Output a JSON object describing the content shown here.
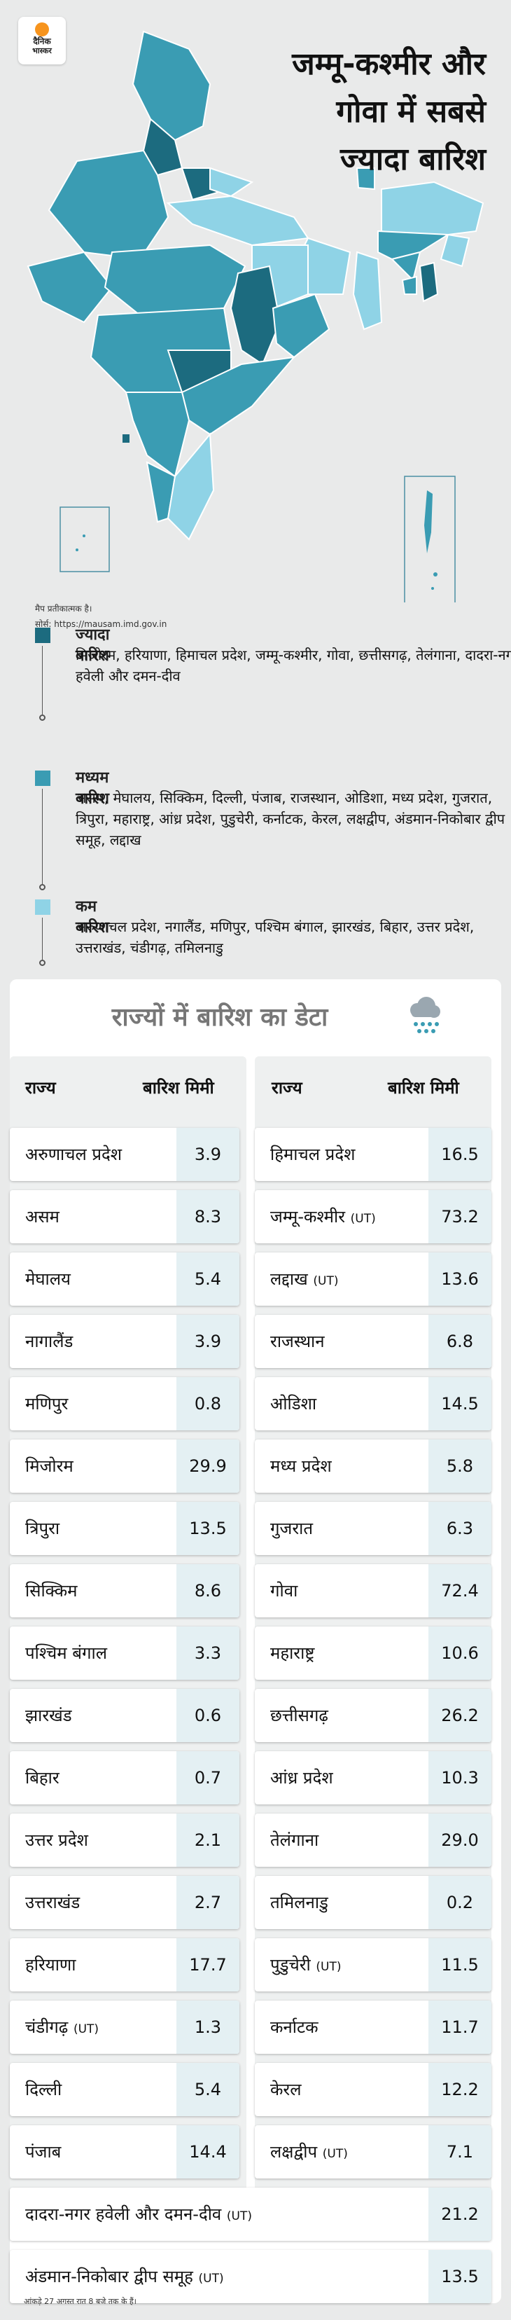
{
  "brand": {
    "line1": "दैनिक",
    "line2": "भास्कर"
  },
  "headline": [
    "जम्मू-कश्मीर और",
    "गोवा में सबसे",
    "ज्यादा बारिश"
  ],
  "map": {
    "note": "मैप प्रतीकात्मक है।",
    "source": "सोर्स: https://mausam.imd.gov.in",
    "colors": {
      "high": "#1c6b7f",
      "medium": "#3a9cb3",
      "low": "#8fd3e6"
    }
  },
  "legend": [
    {
      "title": "ज्यादा बारिश",
      "text": "मिजोरम, हरियाणा, हिमाचल प्रदेश, जम्मू-कश्मीर, गोवा, छत्तीसगढ़, तेलंगाना, दादरा-नगर हवेली और दमन-दीव",
      "color": "#1c6b7f"
    },
    {
      "title": "मध्यम बारिश",
      "text": "असम, मेघालय, सिक्किम, दिल्ली, पंजाब, राजस्थान, ओडिशा, मध्य प्रदेश, गुजरात, त्रिपुरा, महाराष्ट्र, आंध्र प्रदेश, पुडुचेरी, कर्नाटक, केरल, लक्षद्वीप, अंडमान-निकोबार द्वीप समूह, लद्दाख",
      "color": "#3a9cb3"
    },
    {
      "title": "कम बारिश",
      "text": "अरुणाचल प्रदेश, नगालैंड, मणिपुर, पश्चिम बंगाल, झारखंड, बिहार, उत्तर प्रदेश, उत्तराखंड, चंडीगढ़, तमिलनाडु",
      "color": "#8fd3e6"
    }
  ],
  "table": {
    "title": "राज्यों में बारिश का डेटा",
    "col_state": "राज्य",
    "col_rain": "बारिश मिमी",
    "footnote": "आंकड़े 27 अगस्त रात 8 बजे तक के हैं।"
  },
  "chart_data": {
    "type": "table",
    "title": "राज्यों में बारिश का डेटा",
    "columns": [
      "राज्य",
      "बारिश मिमी"
    ],
    "left": [
      {
        "state": "अरुणाचल प्रदेश",
        "ut": "",
        "value": 3.9
      },
      {
        "state": "असम",
        "ut": "",
        "value": 8.3
      },
      {
        "state": "मेघालय",
        "ut": "",
        "value": 5.4
      },
      {
        "state": "नागालैंड",
        "ut": "",
        "value": 3.9
      },
      {
        "state": "मणिपुर",
        "ut": "",
        "value": 0.8
      },
      {
        "state": "मिजोरम",
        "ut": "",
        "value": 29.9
      },
      {
        "state": "त्रिपुरा",
        "ut": "",
        "value": 13.5
      },
      {
        "state": "सिक्किम",
        "ut": "",
        "value": 8.6
      },
      {
        "state": "पश्चिम बंगाल",
        "ut": "",
        "value": 3.3
      },
      {
        "state": "झारखंड",
        "ut": "",
        "value": 0.6
      },
      {
        "state": "बिहार",
        "ut": "",
        "value": 0.7
      },
      {
        "state": "उत्तर प्रदेश",
        "ut": "",
        "value": 2.1
      },
      {
        "state": "उत्तराखंड",
        "ut": "",
        "value": 2.7
      },
      {
        "state": "हरियाणा",
        "ut": "",
        "value": 17.7
      },
      {
        "state": "चंडीगढ़",
        "ut": "(UT)",
        "value": 1.3
      },
      {
        "state": "दिल्ली",
        "ut": "",
        "value": 5.4
      },
      {
        "state": "पंजाब",
        "ut": "",
        "value": 14.4
      }
    ],
    "right": [
      {
        "state": "हिमाचल प्रदेश",
        "ut": "",
        "value": 16.5
      },
      {
        "state": "जम्मू-कश्मीर",
        "ut": "(UT)",
        "value": 73.2
      },
      {
        "state": "लद्दाख",
        "ut": "(UT)",
        "value": 13.6
      },
      {
        "state": "राजस्थान",
        "ut": "",
        "value": 6.8
      },
      {
        "state": "ओडिशा",
        "ut": "",
        "value": 14.5
      },
      {
        "state": "मध्य प्रदेश",
        "ut": "",
        "value": 5.8
      },
      {
        "state": "गुजरात",
        "ut": "",
        "value": 6.3
      },
      {
        "state": "गोवा",
        "ut": "",
        "value": 72.4
      },
      {
        "state": "महाराष्ट्र",
        "ut": "",
        "value": 10.6
      },
      {
        "state": "छत्तीसगढ़",
        "ut": "",
        "value": 26.2
      },
      {
        "state": "आंध्र प्रदेश",
        "ut": "",
        "value": 10.3
      },
      {
        "state": "तेलंगाना",
        "ut": "",
        "value": 29.0
      },
      {
        "state": "तमिलनाडु",
        "ut": "",
        "value": 0.2
      },
      {
        "state": "पुडुचेरी",
        "ut": "(UT)",
        "value": 11.5
      },
      {
        "state": "कर्नाटक",
        "ut": "",
        "value": 11.7
      },
      {
        "state": "केरल",
        "ut": "",
        "value": 12.2
      },
      {
        "state": "लक्षद्वीप",
        "ut": "(UT)",
        "value": 7.1
      }
    ],
    "full": [
      {
        "state": "दादरा-नगर हवेली और दमन-दीव",
        "ut": "(UT)",
        "value": 21.2
      },
      {
        "state": "अंडमान-निकोबार द्वीप समूह",
        "ut": "(UT)",
        "value": 13.5
      }
    ]
  }
}
